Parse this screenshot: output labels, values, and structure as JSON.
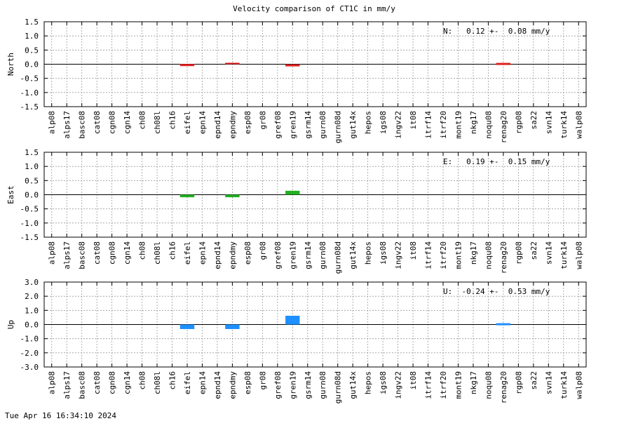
{
  "title": "Velocity comparison of CT1C in mm/y",
  "timestamp": "Tue Apr 16 16:34:10 2024",
  "chart_data": [
    {
      "type": "bar",
      "ylabel": "North",
      "ylim": [
        -1.5,
        1.5
      ],
      "yticks": [
        "1.5",
        "1.0",
        "0.5",
        "0.0",
        "-0.5",
        "-1.0",
        "-1.5"
      ],
      "grid": true,
      "color": "#e02020",
      "summary": "N:   0.12 +-  0.08 mm/y",
      "categories": [
        "alp08",
        "alps17",
        "basc08",
        "cat08",
        "cgn08",
        "cgn14",
        "ch08",
        "ch08l",
        "ch16",
        "eifel",
        "epn14",
        "epnd14",
        "epndmy",
        "esp08",
        "gr08",
        "gref08",
        "gren19",
        "gsrm14",
        "gurn08",
        "gurn08d",
        "gut14x",
        "hepos",
        "igs08",
        "ingv22",
        "it08",
        "itrf14",
        "itrf20",
        "mont19",
        "nkg17",
        "noqu08",
        "renag20",
        "rgp08",
        "sa22",
        "svn14",
        "turk14",
        "walp08"
      ],
      "values": [
        null,
        null,
        null,
        null,
        null,
        null,
        null,
        null,
        null,
        -0.03,
        null,
        null,
        0.05,
        null,
        null,
        null,
        -0.04,
        null,
        null,
        null,
        null,
        null,
        null,
        null,
        null,
        null,
        null,
        null,
        null,
        null,
        0.01,
        null,
        null,
        null,
        null,
        null
      ]
    },
    {
      "type": "bar",
      "ylabel": "East",
      "ylim": [
        -1.5,
        1.5
      ],
      "yticks": [
        "1.5",
        "1.0",
        "0.5",
        "0.0",
        "-0.5",
        "-1.0",
        "-1.5"
      ],
      "grid": true,
      "color": "#22b022",
      "summary": "E:   0.19 +-  0.15 mm/y",
      "categories": [
        "alp08",
        "alps17",
        "basc08",
        "cat08",
        "cgn08",
        "cgn14",
        "ch08",
        "ch08l",
        "ch16",
        "eifel",
        "epn14",
        "epnd14",
        "epndmy",
        "esp08",
        "gr08",
        "gref08",
        "gren19",
        "gsrm14",
        "gurn08",
        "gurn08d",
        "gut14x",
        "hepos",
        "igs08",
        "ingv22",
        "it08",
        "itrf14",
        "itrf20",
        "mont19",
        "nkg17",
        "noqu08",
        "renag20",
        "rgp08",
        "sa22",
        "svn14",
        "turk14",
        "walp08"
      ],
      "values": [
        null,
        null,
        null,
        null,
        null,
        null,
        null,
        null,
        null,
        -0.09,
        null,
        null,
        -0.09,
        null,
        null,
        null,
        0.14,
        null,
        null,
        null,
        null,
        null,
        null,
        null,
        null,
        null,
        null,
        null,
        null,
        null,
        null,
        null,
        null,
        null,
        null,
        null
      ]
    },
    {
      "type": "bar",
      "ylabel": "Up",
      "ylim": [
        -3.0,
        3.0
      ],
      "yticks": [
        "3.0",
        "2.0",
        "1.0",
        "0.0",
        "-1.0",
        "-2.0",
        "-3.0"
      ],
      "grid": true,
      "color": "#1e90ff",
      "summary": "U:  -0.24 +-  0.53 mm/y",
      "categories": [
        "alp08",
        "alps17",
        "basc08",
        "cat08",
        "cgn08",
        "cgn14",
        "ch08",
        "ch08l",
        "ch16",
        "eifel",
        "epn14",
        "epnd14",
        "epndmy",
        "esp08",
        "gr08",
        "gref08",
        "gren19",
        "gsrm14",
        "gurn08",
        "gurn08d",
        "gut14x",
        "hepos",
        "igs08",
        "ingv22",
        "it08",
        "itrf14",
        "itrf20",
        "mont19",
        "nkg17",
        "noqu08",
        "renag20",
        "rgp08",
        "sa22",
        "svn14",
        "turk14",
        "walp08"
      ],
      "values": [
        null,
        null,
        null,
        null,
        null,
        null,
        null,
        null,
        null,
        -0.32,
        null,
        null,
        -0.32,
        null,
        null,
        null,
        0.62,
        null,
        null,
        null,
        null,
        null,
        null,
        null,
        null,
        null,
        null,
        null,
        null,
        null,
        0.02,
        null,
        null,
        null,
        null,
        null
      ]
    }
  ]
}
